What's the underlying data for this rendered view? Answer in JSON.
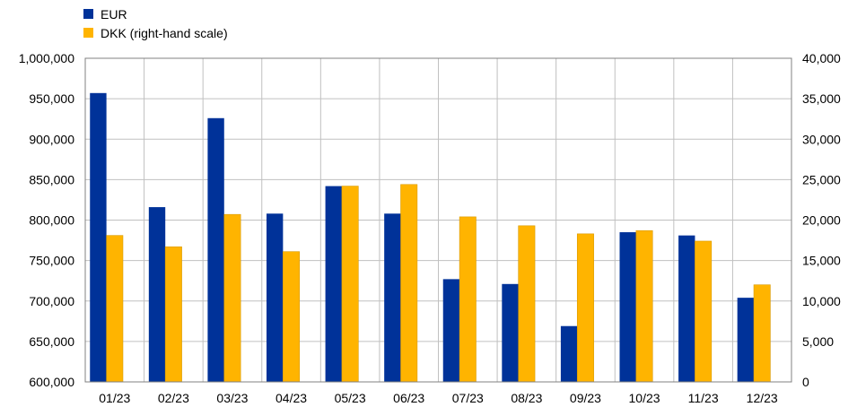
{
  "chart_data": {
    "type": "bar",
    "categories": [
      "01/23",
      "02/23",
      "03/23",
      "04/23",
      "05/23",
      "06/23",
      "07/23",
      "08/23",
      "09/23",
      "10/23",
      "11/23",
      "12/23"
    ],
    "series": [
      {
        "name": "EUR",
        "axis": "left",
        "color": "#003299",
        "values": [
          957000,
          816000,
          926000,
          808000,
          842000,
          808000,
          727000,
          721000,
          669000,
          785000,
          781000,
          704000
        ]
      },
      {
        "name": "DKK (right-hand scale)",
        "axis": "right",
        "color": "#FFB400",
        "values": [
          18100,
          16700,
          20700,
          16100,
          24200,
          24400,
          20400,
          19300,
          18300,
          18700,
          17400,
          12000
        ]
      }
    ],
    "y_left": {
      "min": 600000,
      "max": 1000000,
      "step": 50000,
      "tick_labels": [
        "600,000",
        "650,000",
        "700,000",
        "750,000",
        "800,000",
        "850,000",
        "900,000",
        "950,000",
        "1,000,000"
      ]
    },
    "y_right": {
      "min": 0,
      "max": 40000,
      "step": 5000,
      "tick_labels": [
        "0",
        "5,000",
        "10,000",
        "15,000",
        "20,000",
        "25,000",
        "30,000",
        "35,000",
        "40,000"
      ]
    },
    "grid": true,
    "legend_position": "top-left"
  }
}
